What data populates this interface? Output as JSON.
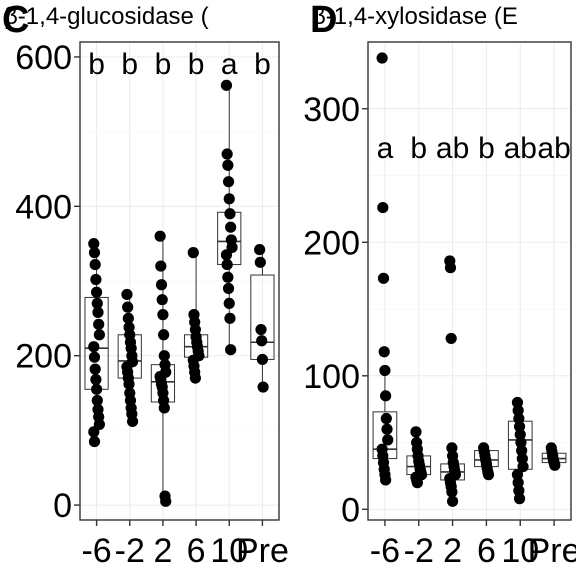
{
  "chart_data": [
    {
      "panel": "C",
      "type": "box",
      "title": "β-1,4-glucosidase (",
      "xlabel": "",
      "ylabel": "",
      "categories": [
        "-6",
        "-2",
        "2",
        "6",
        "10",
        "Pre"
      ],
      "ylim": [
        -20,
        620
      ],
      "yticks": [
        0,
        200,
        400,
        600
      ],
      "significance_letters": [
        "b",
        "b",
        "b",
        "b",
        "a",
        "b"
      ],
      "boxes": [
        {
          "min": 85,
          "q1": 155,
          "median": 210,
          "q3": 278,
          "max": 350
        },
        {
          "min": 112,
          "q1": 170,
          "median": 193,
          "q3": 228,
          "max": 282
        },
        {
          "min": 5,
          "q1": 138,
          "median": 165,
          "q3": 188,
          "max": 360
        },
        {
          "min": 170,
          "q1": 198,
          "median": 212,
          "q3": 228,
          "max": 338
        },
        {
          "min": 208,
          "q1": 322,
          "median": 353,
          "q3": 392,
          "max": 562
        },
        {
          "min": 158,
          "q1": 195,
          "median": 218,
          "q3": 308,
          "max": 342
        }
      ],
      "points": [
        [
          350,
          338,
          322,
          302,
          285,
          270,
          258,
          242,
          228,
          212,
          198,
          182,
          168,
          155,
          140,
          128,
          118,
          108,
          98,
          85
        ],
        [
          282,
          265,
          250,
          238,
          228,
          218,
          210,
          200,
          192,
          185,
          178,
          170,
          162,
          150,
          140,
          130,
          122,
          112
        ],
        [
          360,
          320,
          295,
          275,
          255,
          228,
          200,
          188,
          178,
          172,
          168,
          162,
          158,
          150,
          140,
          130,
          12,
          5
        ],
        [
          338,
          255,
          245,
          235,
          225,
          218,
          212,
          206,
          200,
          194,
          186,
          178,
          170
        ],
        [
          562,
          470,
          455,
          433,
          410,
          390,
          372,
          355,
          345,
          335,
          322,
          305,
          290,
          270,
          250,
          208
        ],
        [
          342,
          325,
          235,
          220,
          195,
          158
        ]
      ],
      "point_color": "#000000",
      "grid": true
    },
    {
      "panel": "D",
      "type": "box",
      "title": "β-1,4-xylosidase (E",
      "xlabel": "",
      "ylabel": "",
      "categories": [
        "-6",
        "-2",
        "2",
        "6",
        "10",
        "Pre"
      ],
      "ylim": [
        -8,
        350
      ],
      "yticks": [
        0,
        100,
        200,
        300
      ],
      "significance_letters": [
        "a",
        "b",
        "ab",
        "b",
        "ab",
        "ab"
      ],
      "boxes": [
        {
          "min": 22,
          "q1": 38,
          "median": 45,
          "q3": 73,
          "max": 104
        },
        {
          "min": 20,
          "q1": 26,
          "median": 32,
          "q3": 40,
          "max": 58
        },
        {
          "min": 6,
          "q1": 22,
          "median": 28,
          "q3": 34,
          "max": 46
        },
        {
          "min": 26,
          "q1": 32,
          "median": 37,
          "q3": 44,
          "max": 46
        },
        {
          "min": 8,
          "q1": 30,
          "median": 52,
          "q3": 66,
          "max": 80
        },
        {
          "min": 33,
          "q1": 35,
          "median": 38,
          "q3": 42,
          "max": 46
        }
      ],
      "points": [
        [
          338,
          226,
          173,
          118,
          104,
          85,
          68,
          60,
          52,
          45,
          40,
          35,
          30,
          26,
          22
        ],
        [
          58,
          50,
          45,
          40,
          36,
          33,
          30,
          28,
          26,
          24,
          22,
          20
        ],
        [
          186,
          181,
          128,
          46,
          40,
          35,
          32,
          29,
          26,
          23,
          20,
          17,
          13,
          6
        ],
        [
          46,
          43,
          40,
          37,
          34,
          31,
          28,
          26
        ],
        [
          80,
          74,
          68,
          62,
          56,
          50,
          44,
          38,
          32,
          26,
          20,
          14,
          8
        ],
        [
          46,
          43,
          40,
          37,
          35,
          33
        ]
      ],
      "point_color": "#000000",
      "grid": true
    }
  ]
}
